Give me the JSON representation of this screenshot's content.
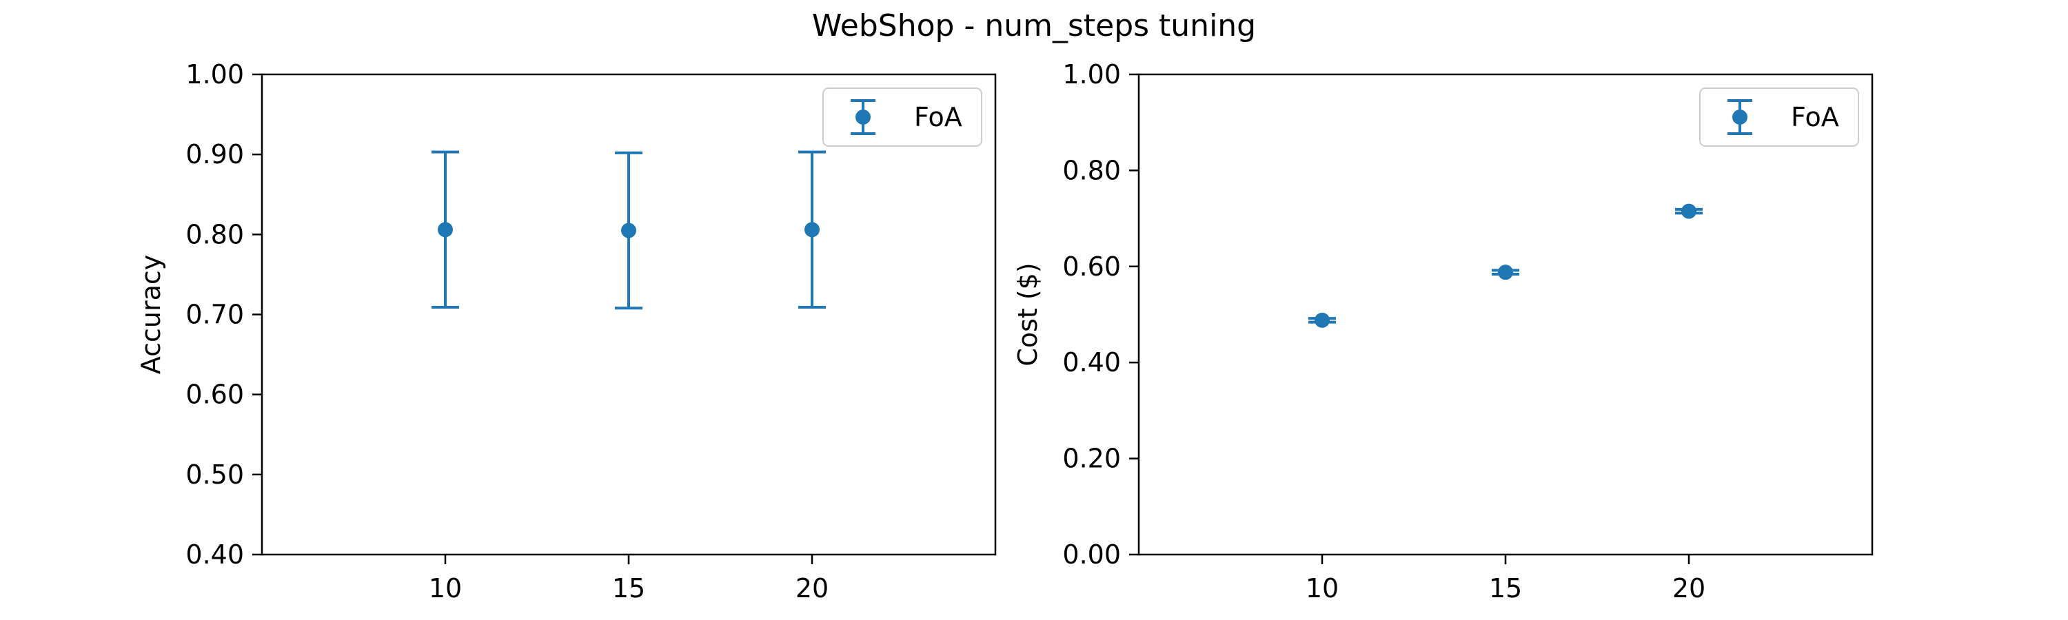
{
  "figure": {
    "title": "WebShop - num_steps tuning"
  },
  "chart_data": [
    {
      "type": "errorbar",
      "title": "",
      "xlabel": "",
      "ylabel": "Accuracy",
      "xlim": [
        5,
        25
      ],
      "ylim": [
        0.4,
        1.0
      ],
      "x_ticks": [
        10,
        15,
        20
      ],
      "y_ticks": [
        0.4,
        0.5,
        0.6,
        0.7,
        0.8,
        0.9,
        1.0
      ],
      "y_tick_labels": [
        "0.40",
        "0.50",
        "0.60",
        "0.70",
        "0.80",
        "0.90",
        "1.00"
      ],
      "legend_position": "top-right",
      "series": [
        {
          "name": "FoA",
          "color": "#1f77b4",
          "x": [
            10,
            15,
            20
          ],
          "y": [
            0.806,
            0.805,
            0.806
          ],
          "yerr": [
            0.097,
            0.097,
            0.097
          ]
        }
      ]
    },
    {
      "type": "errorbar",
      "title": "",
      "xlabel": "",
      "ylabel": "Cost ($)",
      "xlim": [
        5,
        25
      ],
      "ylim": [
        0.0,
        1.0
      ],
      "x_ticks": [
        10,
        15,
        20
      ],
      "y_ticks": [
        0.0,
        0.2,
        0.4,
        0.6,
        0.8,
        1.0
      ],
      "y_tick_labels": [
        "0.00",
        "0.20",
        "0.40",
        "0.60",
        "0.80",
        "1.00"
      ],
      "legend_position": "top-right",
      "series": [
        {
          "name": "FoA",
          "color": "#1f77b4",
          "x": [
            10,
            15,
            20
          ],
          "y": [
            0.488,
            0.588,
            0.715
          ],
          "yerr": [
            0.004,
            0.004,
            0.004
          ]
        }
      ]
    }
  ]
}
